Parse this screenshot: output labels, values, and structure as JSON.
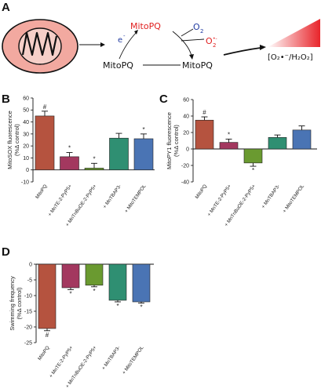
{
  "schematic": {
    "panel_label": "A",
    "mitopq_red": "MitoPQ",
    "mitopq_left": "MitoPQ",
    "mitopq_right": "MitoPQ",
    "electron": "e",
    "electron_sup": "-",
    "o2_top": "O",
    "o2_top_sub": "2",
    "o2_radical": "O",
    "o2_radical_sub": "2",
    "o2_radical_sup": "•-",
    "ros_text": "[O₂•⁻/H₂O₂]"
  },
  "colors": {
    "mitopq": "#b5533f",
    "mnte": "#a3385f",
    "mntnbuoe": "#6a9a30",
    "mntbap": "#2f8f72",
    "mitotempol": "#4a74b4",
    "error_bar": "#111111",
    "schematic_red": "#e02020",
    "schematic_blue": "#203aa0",
    "cell_fill": "#f2a9a0"
  },
  "chart_data": [
    {
      "panel": "B",
      "type": "bar",
      "ylabel_line1": "MitoSOX fluorescence",
      "ylabel_line2": "(%Δ control)",
      "ylim": [
        -10,
        60
      ],
      "yticks": [
        -10,
        0,
        10,
        20,
        30,
        40,
        50,
        60
      ],
      "categories": [
        "MitoPQ",
        "+ MnTE-2-PyP5+",
        "+ MnTnBuOE-2-PyP5+",
        "+ MnTBAP3-",
        "+ MitoTEMPOL"
      ],
      "values": [
        45,
        11,
        1.5,
        26.5,
        26
      ],
      "errors": [
        4,
        3.5,
        4,
        4,
        4
      ],
      "marks": [
        "#",
        "*",
        "*",
        "",
        "*"
      ]
    },
    {
      "panel": "C",
      "type": "bar",
      "ylabel_line1": "MitoPY1 fluorescence",
      "ylabel_line2": "(%Δ control)",
      "ylim": [
        -40,
        60
      ],
      "yticks": [
        -40,
        -20,
        0,
        20,
        40,
        60
      ],
      "categories": [
        "MitoPQ",
        "+ MnTE-2-PyP5+",
        "+ MnTnBuOE-2-PyP5+",
        "+ MnTBAP3-",
        "+ MitoTEMPOL"
      ],
      "values": [
        35,
        8,
        -17,
        14,
        23
      ],
      "errors": [
        4,
        4,
        4,
        3,
        5
      ],
      "marks": [
        "#",
        "*",
        "*",
        "",
        ""
      ]
    },
    {
      "panel": "D",
      "type": "bar",
      "ylabel_line1": "Swimming frequency",
      "ylabel_line2": "(%Δ control)",
      "ylim": [
        -25,
        0
      ],
      "yticks": [
        -25,
        -20,
        -15,
        -10,
        -5,
        0
      ],
      "categories": [
        "MitoPQ",
        "+ MnTE-2-PyP5+",
        "+ MnTnBuOE-2-PyP5+",
        "+ MnTBAP3-",
        "+ MitoTEMPOL"
      ],
      "values": [
        -20.5,
        -7.5,
        -6.7,
        -11.5,
        -12
      ],
      "errors": [
        0.7,
        0.6,
        0.5,
        0.5,
        0.4
      ],
      "marks": [
        "#",
        "*",
        "*",
        "*",
        "*"
      ]
    }
  ]
}
